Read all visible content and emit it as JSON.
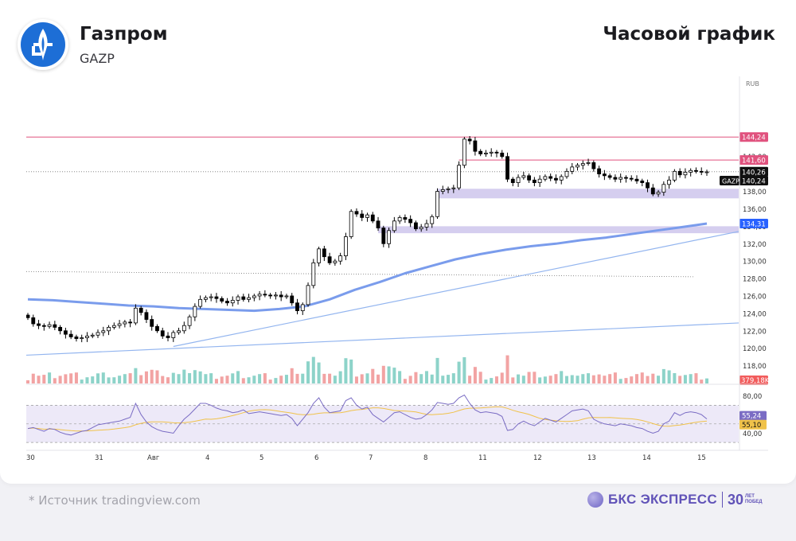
{
  "header": {
    "company": "Газпром",
    "ticker": "GAZP",
    "chart_title": "Часовой график",
    "logo_icon": "gazprom-flame-icon"
  },
  "footer": {
    "source": "*  Источник tradingview.com",
    "brand": "БКС ЭКСПРЕСС",
    "brand_years": "30",
    "brand_years_caption_1": "ЛЕТ",
    "brand_years_caption_2": "ПОБЕД"
  },
  "colors": {
    "up": "#26a69a",
    "down": "#000000",
    "resistance": "#e0527e",
    "zone": "#c7bde9",
    "ma": "#7a9cec",
    "trend": "#93b5ef",
    "rsi": "#7a6cc4",
    "rsi_ma": "#f0c24a",
    "vol_up": "#8dd3c9",
    "vol_down": "#f2a3a3"
  },
  "chart_data": {
    "type": "candlestick",
    "currency": "RUB",
    "symbol": "GAZP",
    "ylim": [
      116.5,
      151.2
    ],
    "y_ticks": [
      118,
      120,
      122,
      124,
      126,
      128,
      130,
      132,
      134,
      136,
      138,
      140,
      142
    ],
    "y_tick_labels": [
      "118,00",
      "120,00",
      "122,00",
      "124,00",
      "126,00",
      "128,00",
      "130,00",
      "132,00",
      "134,00",
      "136,00",
      "138,00",
      "140,00",
      "142,00"
    ],
    "x_labels": [
      "30",
      "31",
      "Авг",
      "4",
      "5",
      "6",
      "7",
      "8",
      "11",
      "12",
      "13",
      "14",
      "15"
    ],
    "price_labels": [
      {
        "value": 144.24,
        "text": "144,24",
        "kind": "resistance"
      },
      {
        "value": 141.6,
        "text": "141,60",
        "kind": "resistance"
      },
      {
        "value": 140.26,
        "text": "140,26",
        "kind": "last"
      },
      {
        "value": 140.24,
        "text": "140,24",
        "kind": "symbol",
        "symbol": "GAZP"
      },
      {
        "value": 134.31,
        "text": "134,31",
        "kind": "ma"
      }
    ],
    "volume_label": "379,18K",
    "resistance_levels": [
      144.24,
      141.6
    ],
    "support_zones": [
      [
        137.2,
        138.3
      ],
      [
        133.2,
        134.0
      ]
    ],
    "close_series": [
      123.5,
      122.8,
      122.6,
      122.5,
      122.7,
      122.4,
      122.0,
      121.6,
      121.3,
      121.1,
      121.2,
      121.4,
      121.5,
      121.8,
      122.0,
      122.4,
      122.6,
      122.8,
      123.0,
      122.9,
      124.6,
      124.1,
      123.3,
      122.5,
      122.0,
      121.4,
      121.2,
      121.8,
      122.0,
      122.6,
      123.6,
      124.8,
      125.6,
      125.8,
      125.9,
      125.7,
      125.4,
      125.2,
      125.5,
      125.9,
      125.6,
      125.8,
      126.0,
      126.2,
      126.1,
      126.0,
      126.1,
      125.9,
      126.0,
      125.2,
      124.3,
      125.0,
      127.2,
      129.8,
      131.4,
      130.5,
      129.8,
      130.0,
      130.6,
      132.8,
      135.7,
      135.4,
      135.0,
      135.3,
      134.6,
      133.8,
      132.0,
      133.5,
      134.6,
      135.0,
      134.8,
      134.4,
      133.7,
      133.9,
      134.3,
      135.1,
      138.0,
      138.2,
      138.3,
      138.4,
      141.0,
      144.0,
      143.8,
      142.6,
      142.3,
      142.4,
      142.5,
      142.4,
      142.0,
      139.4,
      139.0,
      139.6,
      139.8,
      139.3,
      139.0,
      139.4,
      139.7,
      139.5,
      139.3,
      139.7,
      140.3,
      140.8,
      141.0,
      141.2,
      141.3,
      140.6,
      140.0,
      139.8,
      139.6,
      139.4,
      139.6,
      139.5,
      139.4,
      139.2,
      139.0,
      138.4,
      137.7,
      137.9,
      138.8,
      139.3,
      140.3,
      139.9,
      140.2,
      140.4,
      140.3,
      140.2,
      140.24
    ],
    "ma_series": [
      125.6,
      125.5,
      125.3,
      125.1,
      124.9,
      124.8,
      124.6,
      124.5,
      124.4,
      124.3,
      124.5,
      124.8,
      125.6,
      126.7,
      127.6,
      128.6,
      129.4,
      130.2,
      130.8,
      131.3,
      131.7,
      132.0,
      132.4,
      132.7,
      133.1,
      133.5,
      133.9,
      134.31
    ],
    "rsi": {
      "labels": [
        "80,00",
        "60,00",
        "40,00"
      ],
      "current_value": 55.24,
      "current_label": "55,24",
      "ma_value": 55.1,
      "ma_label": "55,10",
      "upper": 70,
      "mid": 50,
      "lower": 30,
      "series": [
        45,
        46,
        44,
        42,
        45,
        44,
        41,
        39,
        38,
        40,
        42,
        43,
        46,
        49,
        50,
        51,
        52,
        53,
        55,
        57,
        72,
        60,
        52,
        47,
        44,
        42,
        41,
        40,
        48,
        55,
        60,
        66,
        72,
        72,
        70,
        67,
        65,
        64,
        62,
        63,
        65,
        61,
        62,
        63,
        62,
        61,
        60,
        59,
        60,
        56,
        48,
        55,
        62,
        72,
        78,
        68,
        62,
        63,
        64,
        75,
        78,
        70,
        66,
        68,
        60,
        56,
        52,
        57,
        62,
        63,
        60,
        57,
        55,
        56,
        60,
        65,
        73,
        72,
        71,
        72,
        78,
        81,
        72,
        65,
        62,
        63,
        62,
        61,
        58,
        43,
        44,
        50,
        53,
        50,
        48,
        52,
        56,
        54,
        52,
        56,
        60,
        64,
        65,
        66,
        64,
        55,
        52,
        50,
        49,
        48,
        50,
        49,
        48,
        46,
        45,
        42,
        40,
        42,
        50,
        53,
        62,
        59,
        62,
        63,
        62,
        60,
        55.24
      ]
    }
  }
}
